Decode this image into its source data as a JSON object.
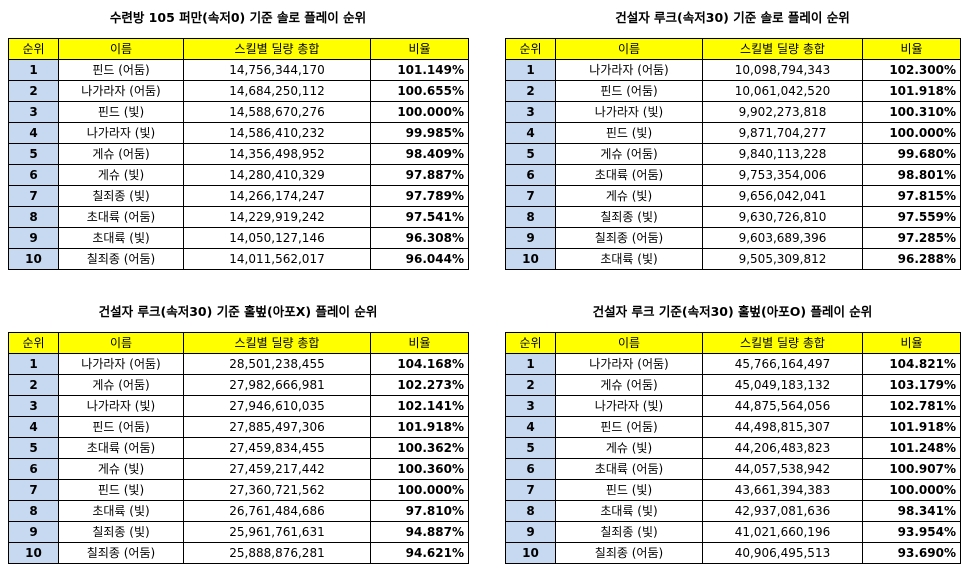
{
  "tables": [
    {
      "title": "수련방 105 퍼만(속저0) 기준 솔로 플레이 순위",
      "header": [
        "순위",
        "이름",
        "스킬별 딜량 총합",
        "비율"
      ],
      "rows": [
        [
          "1",
          "핀드 (어둠)",
          "14,756,344,170",
          "101.149%"
        ],
        [
          "2",
          "나가라자 (어둠)",
          "14,684,250,112",
          "100.655%"
        ],
        [
          "3",
          "핀드 (빛)",
          "14,588,670,276",
          "100.000%"
        ],
        [
          "4",
          "나가라자 (빛)",
          "14,586,410,232",
          "99.985%"
        ],
        [
          "5",
          "게슈 (어둠)",
          "14,356,498,952",
          "98.409%"
        ],
        [
          "6",
          "게슈 (빛)",
          "14,280,410,329",
          "97.887%"
        ],
        [
          "7",
          "칠죄종 (빛)",
          "14,266,174,247",
          "97.789%"
        ],
        [
          "8",
          "초대륙 (어둠)",
          "14,229,919,242",
          "97.541%"
        ],
        [
          "9",
          "초대륙 (빛)",
          "14,050,127,146",
          "96.308%"
        ],
        [
          "10",
          "칠죄종 (어둠)",
          "14,011,562,017",
          "96.044%"
        ]
      ]
    },
    {
      "title": "건설자 루크(속저30) 기준 솔로 플레이 순위",
      "header": [
        "순위",
        "이름",
        "스킬별 딜량 총합",
        "비율"
      ],
      "rows": [
        [
          "1",
          "나가라자 (어둠)",
          "10,098,794,343",
          "102.300%"
        ],
        [
          "2",
          "핀드 (어둠)",
          "10,061,042,520",
          "101.918%"
        ],
        [
          "3",
          "나가라자 (빛)",
          "9,902,273,818",
          "100.310%"
        ],
        [
          "4",
          "핀드 (빛)",
          "9,871,704,277",
          "100.000%"
        ],
        [
          "5",
          "게슈 (어둠)",
          "9,840,113,228",
          "99.680%"
        ],
        [
          "6",
          "초대륙 (어둠)",
          "9,753,354,006",
          "98.801%"
        ],
        [
          "7",
          "게슈 (빛)",
          "9,656,042,041",
          "97.815%"
        ],
        [
          "8",
          "칠죄종 (빛)",
          "9,630,726,810",
          "97.559%"
        ],
        [
          "9",
          "칠죄종 (어둠)",
          "9,603,689,396",
          "97.285%"
        ],
        [
          "10",
          "초대륙 (빛)",
          "9,505,309,812",
          "96.288%"
        ]
      ]
    },
    {
      "title": "건설자 루크(속저30) 기준 홀벞(아포X) 플레이 순위",
      "header": [
        "순위",
        "이름",
        "스킬별 딜량 총합",
        "비율"
      ],
      "rows": [
        [
          "1",
          "나가라자 (어둠)",
          "28,501,238,455",
          "104.168%"
        ],
        [
          "2",
          "게슈 (어둠)",
          "27,982,666,981",
          "102.273%"
        ],
        [
          "3",
          "나가라자 (빛)",
          "27,946,610,035",
          "102.141%"
        ],
        [
          "4",
          "핀드 (어둠)",
          "27,885,497,306",
          "101.918%"
        ],
        [
          "5",
          "초대륙 (어둠)",
          "27,459,834,455",
          "100.362%"
        ],
        [
          "6",
          "게슈 (빛)",
          "27,459,217,442",
          "100.360%"
        ],
        [
          "7",
          "핀드 (빛)",
          "27,360,721,562",
          "100.000%"
        ],
        [
          "8",
          "초대륙 (빛)",
          "26,761,484,686",
          "97.810%"
        ],
        [
          "9",
          "칠죄종 (빛)",
          "25,961,761,631",
          "94.887%"
        ],
        [
          "10",
          "칠죄종 (어둠)",
          "25,888,876,281",
          "94.621%"
        ]
      ]
    },
    {
      "title": "건설자 루크 기준(속저30) 홀벞(아포O) 플레이 순위",
      "header": [
        "순위",
        "이름",
        "스킬별 딜량 총합",
        "비율"
      ],
      "rows": [
        [
          "1",
          "나가라자 (어둠)",
          "45,766,164,497",
          "104.821%"
        ],
        [
          "2",
          "게슈 (어둠)",
          "45,049,183,132",
          "103.179%"
        ],
        [
          "3",
          "나가라자 (빛)",
          "44,875,564,056",
          "102.781%"
        ],
        [
          "4",
          "핀드 (어둠)",
          "44,498,815,307",
          "101.918%"
        ],
        [
          "5",
          "게슈 (빛)",
          "44,206,483,823",
          "101.248%"
        ],
        [
          "6",
          "초대륙 (어둠)",
          "44,057,538,942",
          "100.907%"
        ],
        [
          "7",
          "핀드 (빛)",
          "43,661,394,383",
          "100.000%"
        ],
        [
          "8",
          "초대륙 (빛)",
          "42,937,081,636",
          "98.341%"
        ],
        [
          "9",
          "칠죄종 (빛)",
          "41,021,660,196",
          "93.954%"
        ],
        [
          "10",
          "칠죄종 (어둠)",
          "40,906,495,513",
          "93.690%"
        ]
      ]
    }
  ]
}
